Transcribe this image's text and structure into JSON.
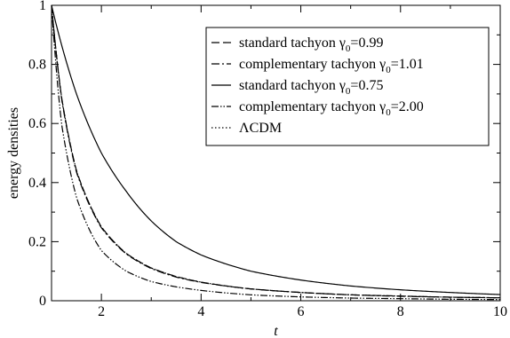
{
  "chart_data": {
    "type": "line",
    "xlabel": "t",
    "ylabel": "energy densities",
    "xlim": [
      1,
      10
    ],
    "ylim": [
      0,
      1
    ],
    "xticks": [
      "2",
      "4",
      "6",
      "8",
      "10"
    ],
    "yticks": [
      "0",
      "0.2",
      "0.4",
      "0.6",
      "0.8",
      "1"
    ],
    "legend_position": "top-right",
    "legend": [
      {
        "label": "standard tachyon γ",
        "subscript": "0",
        "suffix": "=0.99",
        "dash": "long-dash"
      },
      {
        "label": "complementary tachyon γ",
        "subscript": "0",
        "suffix": "=1.01",
        "dash": "dash-dot-long"
      },
      {
        "label": "standard tachyon γ",
        "subscript": "0",
        "suffix": "=0.75",
        "dash": "solid"
      },
      {
        "label": "complementary tachyon γ",
        "subscript": "0",
        "suffix": "=2.00",
        "dash": "dash-dot-dot"
      },
      {
        "label": "ΛCDM",
        "subscript": "",
        "suffix": "",
        "dash": "dotted"
      }
    ],
    "series": [
      {
        "name": "standard tachyon γ0=0.99",
        "dash": "long-dash",
        "x": [
          1,
          1.2,
          1.5,
          2,
          2.5,
          3,
          3.5,
          4,
          5,
          6,
          7,
          8,
          9,
          10
        ],
        "y": [
          1.0,
          0.69,
          0.44,
          0.25,
          0.16,
          0.111,
          0.082,
          0.063,
          0.04,
          0.028,
          0.02,
          0.016,
          0.012,
          0.01
        ]
      },
      {
        "name": "complementary tachyon γ0=1.01",
        "dash": "dash-dot-long",
        "x": [
          1,
          1.2,
          1.5,
          2,
          2.5,
          3,
          3.5,
          4,
          5,
          6,
          7,
          8,
          9,
          10
        ],
        "y": [
          1.0,
          0.685,
          0.435,
          0.247,
          0.158,
          0.109,
          0.08,
          0.062,
          0.04,
          0.028,
          0.02,
          0.015,
          0.012,
          0.01
        ]
      },
      {
        "name": "standard tachyon γ0=0.75",
        "dash": "solid",
        "x": [
          1,
          1.5,
          2,
          2.5,
          3,
          3.5,
          4,
          5,
          6,
          7,
          8,
          9,
          10
        ],
        "y": [
          1.0,
          0.7,
          0.5,
          0.37,
          0.27,
          0.2,
          0.155,
          0.1,
          0.07,
          0.05,
          0.037,
          0.028,
          0.021
        ]
      },
      {
        "name": "complementary tachyon γ0=2.00",
        "dash": "dash-dot-dot",
        "x": [
          1,
          1.2,
          1.5,
          2,
          2.5,
          3,
          3.5,
          4,
          5,
          6,
          7,
          8,
          9,
          10
        ],
        "y": [
          1.0,
          0.6,
          0.35,
          0.17,
          0.1,
          0.065,
          0.047,
          0.035,
          0.02,
          0.013,
          0.009,
          0.007,
          0.005,
          0.004
        ]
      },
      {
        "name": "ΛCDM",
        "dash": "dotted",
        "x": [
          1,
          1.2,
          1.5,
          2,
          2.5,
          3,
          3.5,
          4,
          5,
          6,
          7,
          8,
          9,
          10
        ],
        "y": [
          1.0,
          0.69,
          0.44,
          0.25,
          0.16,
          0.111,
          0.082,
          0.063,
          0.04,
          0.028,
          0.02,
          0.016,
          0.012,
          0.01
        ]
      }
    ]
  }
}
